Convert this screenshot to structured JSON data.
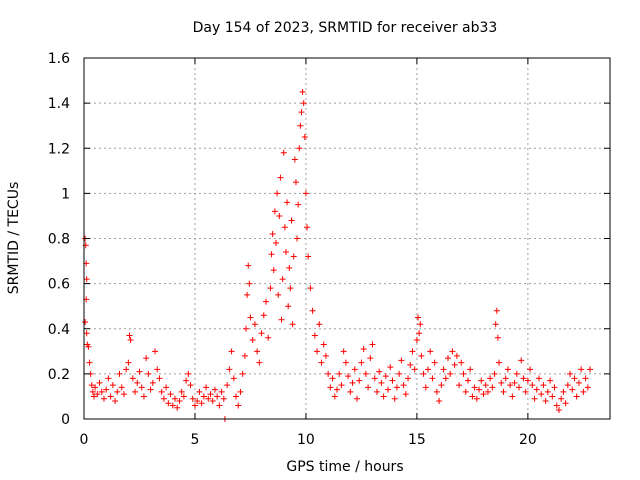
{
  "chart_data": {
    "type": "scatter",
    "title": "Day 154 of 2023, SRMTID for receiver ab33",
    "xlabel": "GPS time / hours",
    "ylabel": "SRMTID / TECUs",
    "xlim": [
      0,
      23.7
    ],
    "ylim": [
      0,
      1.6
    ],
    "xticks": [
      0,
      5,
      10,
      15,
      20
    ],
    "xtick_labels": [
      "0",
      "5",
      "10",
      "15",
      "20"
    ],
    "yticks": [
      0,
      0.2,
      0.4,
      0.6,
      0.8,
      1,
      1.2,
      1.4,
      1.6
    ],
    "ytick_labels": [
      "0",
      "0.2",
      "0.4",
      "0.6",
      "0.8",
      "1",
      "1.2",
      "1.4",
      "1.6"
    ],
    "grid": true,
    "marker": "+",
    "series": [
      {
        "name": "SRMTID",
        "color": "#ff0000",
        "points": [
          [
            0.05,
            0.8
          ],
          [
            0.08,
            0.77
          ],
          [
            0.1,
            0.69
          ],
          [
            0.12,
            0.62
          ],
          [
            0.1,
            0.53
          ],
          [
            0.05,
            0.43
          ],
          [
            0.12,
            0.38
          ],
          [
            0.15,
            0.33
          ],
          [
            0.2,
            0.32
          ],
          [
            0.25,
            0.25
          ],
          [
            0.3,
            0.2
          ],
          [
            0.35,
            0.15
          ],
          [
            0.4,
            0.12
          ],
          [
            0.45,
            0.1
          ],
          [
            0.5,
            0.14
          ],
          [
            0.6,
            0.11
          ],
          [
            0.7,
            0.16
          ],
          [
            0.8,
            0.12
          ],
          [
            0.9,
            0.09
          ],
          [
            1.0,
            0.13
          ],
          [
            1.1,
            0.18
          ],
          [
            1.2,
            0.1
          ],
          [
            1.3,
            0.15
          ],
          [
            1.4,
            0.08
          ],
          [
            1.5,
            0.12
          ],
          [
            1.6,
            0.2
          ],
          [
            1.7,
            0.14
          ],
          [
            1.8,
            0.11
          ],
          [
            1.9,
            0.22
          ],
          [
            2.0,
            0.25
          ],
          [
            2.05,
            0.37
          ],
          [
            2.1,
            0.35
          ],
          [
            2.2,
            0.18
          ],
          [
            2.3,
            0.12
          ],
          [
            2.4,
            0.16
          ],
          [
            2.5,
            0.21
          ],
          [
            2.6,
            0.14
          ],
          [
            2.7,
            0.1
          ],
          [
            2.8,
            0.27
          ],
          [
            2.9,
            0.2
          ],
          [
            3.0,
            0.13
          ],
          [
            3.1,
            0.16
          ],
          [
            3.2,
            0.3
          ],
          [
            3.3,
            0.22
          ],
          [
            3.4,
            0.18
          ],
          [
            3.5,
            0.12
          ],
          [
            3.6,
            0.09
          ],
          [
            3.7,
            0.14
          ],
          [
            3.8,
            0.07
          ],
          [
            3.9,
            0.11
          ],
          [
            4.0,
            0.06
          ],
          [
            4.1,
            0.09
          ],
          [
            4.2,
            0.05
          ],
          [
            4.3,
            0.08
          ],
          [
            4.4,
            0.12
          ],
          [
            4.5,
            0.1
          ],
          [
            4.6,
            0.17
          ],
          [
            4.7,
            0.2
          ],
          [
            4.8,
            0.15
          ],
          [
            4.9,
            0.09
          ],
          [
            5.0,
            0.06
          ],
          [
            5.1,
            0.08
          ],
          [
            5.2,
            0.12
          ],
          [
            5.3,
            0.07
          ],
          [
            5.4,
            0.1
          ],
          [
            5.5,
            0.14
          ],
          [
            5.6,
            0.09
          ],
          [
            5.7,
            0.11
          ],
          [
            5.8,
            0.08
          ],
          [
            5.9,
            0.13
          ],
          [
            6.0,
            0.1
          ],
          [
            6.1,
            0.06
          ],
          [
            6.2,
            0.12
          ],
          [
            6.3,
            0.09
          ],
          [
            6.35,
            0.0
          ],
          [
            6.45,
            0.15
          ],
          [
            6.55,
            0.22
          ],
          [
            6.65,
            0.3
          ],
          [
            6.75,
            0.18
          ],
          [
            6.85,
            0.1
          ],
          [
            6.95,
            0.06
          ],
          [
            7.05,
            0.12
          ],
          [
            7.15,
            0.2
          ],
          [
            7.25,
            0.28
          ],
          [
            7.3,
            0.4
          ],
          [
            7.35,
            0.55
          ],
          [
            7.4,
            0.68
          ],
          [
            7.45,
            0.6
          ],
          [
            7.5,
            0.45
          ],
          [
            7.6,
            0.35
          ],
          [
            7.7,
            0.42
          ],
          [
            7.8,
            0.3
          ],
          [
            7.9,
            0.25
          ],
          [
            8.0,
            0.38
          ],
          [
            8.1,
            0.46
          ],
          [
            8.2,
            0.52
          ],
          [
            8.3,
            0.36
          ],
          [
            8.4,
            0.58
          ],
          [
            8.45,
            0.73
          ],
          [
            8.5,
            0.82
          ],
          [
            8.55,
            0.66
          ],
          [
            8.6,
            0.92
          ],
          [
            8.65,
            0.78
          ],
          [
            8.7,
            1.0
          ],
          [
            8.75,
            0.55
          ],
          [
            8.8,
            0.9
          ],
          [
            8.85,
            1.07
          ],
          [
            8.9,
            0.44
          ],
          [
            8.95,
            0.62
          ],
          [
            9.0,
            1.18
          ],
          [
            9.05,
            0.85
          ],
          [
            9.1,
            0.74
          ],
          [
            9.15,
            0.96
          ],
          [
            9.2,
            0.5
          ],
          [
            9.25,
            0.67
          ],
          [
            9.3,
            0.58
          ],
          [
            9.35,
            0.88
          ],
          [
            9.4,
            0.42
          ],
          [
            9.45,
            0.72
          ],
          [
            9.5,
            1.15
          ],
          [
            9.55,
            1.05
          ],
          [
            9.6,
            0.8
          ],
          [
            9.65,
            0.95
          ],
          [
            9.7,
            1.2
          ],
          [
            9.75,
            1.3
          ],
          [
            9.8,
            1.36
          ],
          [
            9.85,
            1.45
          ],
          [
            9.9,
            1.4
          ],
          [
            9.95,
            1.25
          ],
          [
            10.0,
            1.0
          ],
          [
            10.05,
            0.85
          ],
          [
            10.1,
            0.72
          ],
          [
            10.2,
            0.58
          ],
          [
            10.3,
            0.48
          ],
          [
            10.4,
            0.37
          ],
          [
            10.5,
            0.3
          ],
          [
            10.6,
            0.42
          ],
          [
            10.7,
            0.25
          ],
          [
            10.8,
            0.33
          ],
          [
            10.9,
            0.28
          ],
          [
            11.0,
            0.2
          ],
          [
            11.1,
            0.14
          ],
          [
            11.2,
            0.18
          ],
          [
            11.3,
            0.1
          ],
          [
            11.4,
            0.13
          ],
          [
            11.5,
            0.2
          ],
          [
            11.6,
            0.15
          ],
          [
            11.7,
            0.3
          ],
          [
            11.8,
            0.25
          ],
          [
            11.9,
            0.19
          ],
          [
            12.0,
            0.12
          ],
          [
            12.1,
            0.16
          ],
          [
            12.2,
            0.22
          ],
          [
            12.3,
            0.09
          ],
          [
            12.4,
            0.17
          ],
          [
            12.5,
            0.25
          ],
          [
            12.6,
            0.31
          ],
          [
            12.7,
            0.2
          ],
          [
            12.8,
            0.14
          ],
          [
            12.9,
            0.27
          ],
          [
            13.0,
            0.33
          ],
          [
            13.1,
            0.18
          ],
          [
            13.2,
            0.12
          ],
          [
            13.3,
            0.21
          ],
          [
            13.4,
            0.16
          ],
          [
            13.5,
            0.1
          ],
          [
            13.6,
            0.19
          ],
          [
            13.7,
            0.13
          ],
          [
            13.8,
            0.23
          ],
          [
            13.9,
            0.17
          ],
          [
            14.0,
            0.09
          ],
          [
            14.1,
            0.14
          ],
          [
            14.2,
            0.2
          ],
          [
            14.3,
            0.26
          ],
          [
            14.4,
            0.15
          ],
          [
            14.5,
            0.11
          ],
          [
            14.6,
            0.18
          ],
          [
            14.7,
            0.24
          ],
          [
            14.8,
            0.3
          ],
          [
            14.9,
            0.22
          ],
          [
            15.0,
            0.35
          ],
          [
            15.05,
            0.45
          ],
          [
            15.1,
            0.38
          ],
          [
            15.15,
            0.42
          ],
          [
            15.2,
            0.28
          ],
          [
            15.3,
            0.2
          ],
          [
            15.4,
            0.14
          ],
          [
            15.5,
            0.22
          ],
          [
            15.6,
            0.3
          ],
          [
            15.7,
            0.18
          ],
          [
            15.8,
            0.25
          ],
          [
            15.9,
            0.12
          ],
          [
            16.0,
            0.08
          ],
          [
            16.1,
            0.15
          ],
          [
            16.2,
            0.22
          ],
          [
            16.3,
            0.18
          ],
          [
            16.4,
            0.27
          ],
          [
            16.5,
            0.2
          ],
          [
            16.6,
            0.3
          ],
          [
            16.7,
            0.24
          ],
          [
            16.8,
            0.28
          ],
          [
            16.9,
            0.15
          ],
          [
            17.0,
            0.25
          ],
          [
            17.1,
            0.2
          ],
          [
            17.2,
            0.12
          ],
          [
            17.3,
            0.17
          ],
          [
            17.4,
            0.22
          ],
          [
            17.5,
            0.1
          ],
          [
            17.6,
            0.14
          ],
          [
            17.7,
            0.09
          ],
          [
            17.8,
            0.13
          ],
          [
            17.9,
            0.17
          ],
          [
            18.0,
            0.11
          ],
          [
            18.1,
            0.15
          ],
          [
            18.2,
            0.12
          ],
          [
            18.3,
            0.18
          ],
          [
            18.4,
            0.14
          ],
          [
            18.5,
            0.2
          ],
          [
            18.55,
            0.42
          ],
          [
            18.6,
            0.48
          ],
          [
            18.65,
            0.36
          ],
          [
            18.7,
            0.25
          ],
          [
            18.8,
            0.16
          ],
          [
            18.9,
            0.12
          ],
          [
            19.0,
            0.18
          ],
          [
            19.1,
            0.22
          ],
          [
            19.2,
            0.15
          ],
          [
            19.3,
            0.1
          ],
          [
            19.4,
            0.16
          ],
          [
            19.5,
            0.2
          ],
          [
            19.6,
            0.14
          ],
          [
            19.7,
            0.26
          ],
          [
            19.8,
            0.18
          ],
          [
            19.9,
            0.12
          ],
          [
            20.0,
            0.17
          ],
          [
            20.1,
            0.22
          ],
          [
            20.2,
            0.15
          ],
          [
            20.3,
            0.09
          ],
          [
            20.4,
            0.13
          ],
          [
            20.5,
            0.18
          ],
          [
            20.6,
            0.11
          ],
          [
            20.7,
            0.15
          ],
          [
            20.8,
            0.08
          ],
          [
            20.9,
            0.12
          ],
          [
            21.0,
            0.17
          ],
          [
            21.1,
            0.1
          ],
          [
            21.2,
            0.14
          ],
          [
            21.3,
            0.06
          ],
          [
            21.4,
            0.04
          ],
          [
            21.5,
            0.09
          ],
          [
            21.6,
            0.12
          ],
          [
            21.7,
            0.07
          ],
          [
            21.8,
            0.15
          ],
          [
            21.9,
            0.2
          ],
          [
            22.0,
            0.13
          ],
          [
            22.1,
            0.18
          ],
          [
            22.2,
            0.1
          ],
          [
            22.3,
            0.16
          ],
          [
            22.4,
            0.22
          ],
          [
            22.5,
            0.12
          ],
          [
            22.6,
            0.18
          ],
          [
            22.7,
            0.14
          ],
          [
            22.8,
            0.22
          ]
        ]
      }
    ]
  }
}
